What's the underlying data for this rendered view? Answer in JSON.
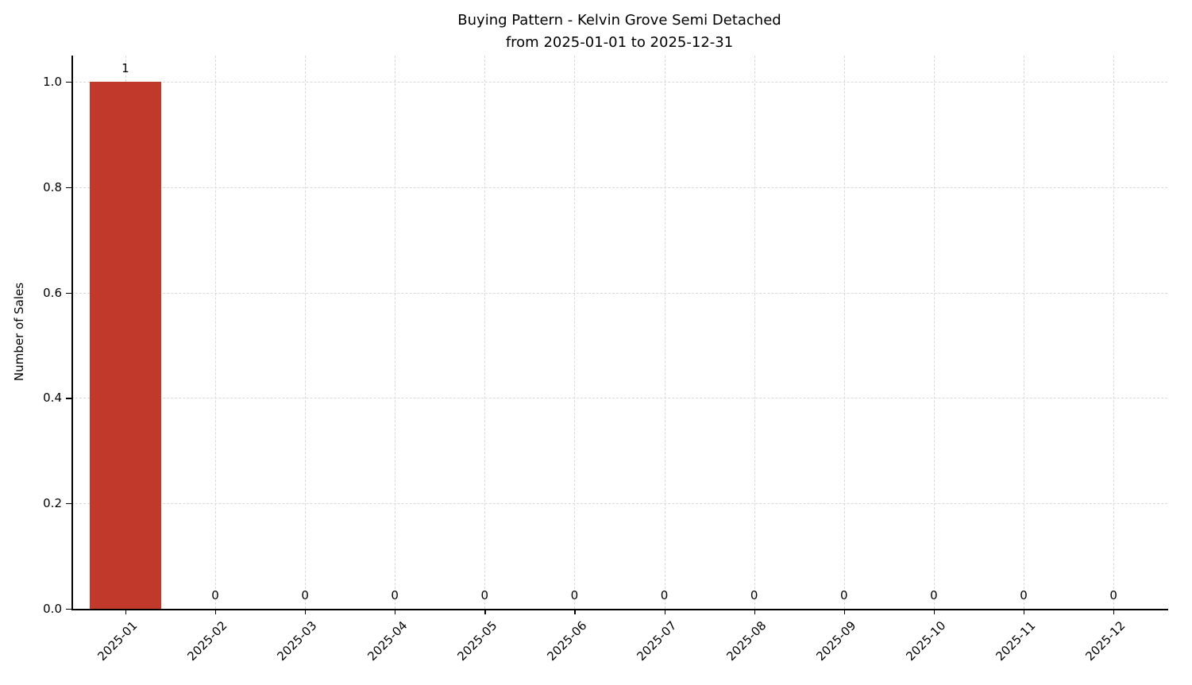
{
  "chart_data": {
    "type": "bar",
    "title_lines": [
      "Buying Pattern - Kelvin Grove Semi Detached",
      "from 2025-01-01 to 2025-12-31"
    ],
    "ylabel": "Number of Sales",
    "xlabel": "",
    "categories": [
      "2025-01",
      "2025-02",
      "2025-03",
      "2025-04",
      "2025-05",
      "2025-06",
      "2025-07",
      "2025-08",
      "2025-09",
      "2025-10",
      "2025-11",
      "2025-12"
    ],
    "values": [
      1,
      0,
      0,
      0,
      0,
      0,
      0,
      0,
      0,
      0,
      0,
      0
    ],
    "value_labels": [
      "1",
      "0",
      "0",
      "0",
      "0",
      "0",
      "0",
      "0",
      "0",
      "0",
      "0",
      "0"
    ],
    "yticks": [
      0.0,
      0.2,
      0.4,
      0.6,
      0.8,
      1.0
    ],
    "ytick_labels": [
      "0.0",
      "0.2",
      "0.4",
      "0.6",
      "0.8",
      "1.0"
    ],
    "ylim": [
      0,
      1.05
    ],
    "bar_color": "#c0392b",
    "grid": true,
    "grid_color": "#d9d9d9",
    "legend": "none"
  }
}
